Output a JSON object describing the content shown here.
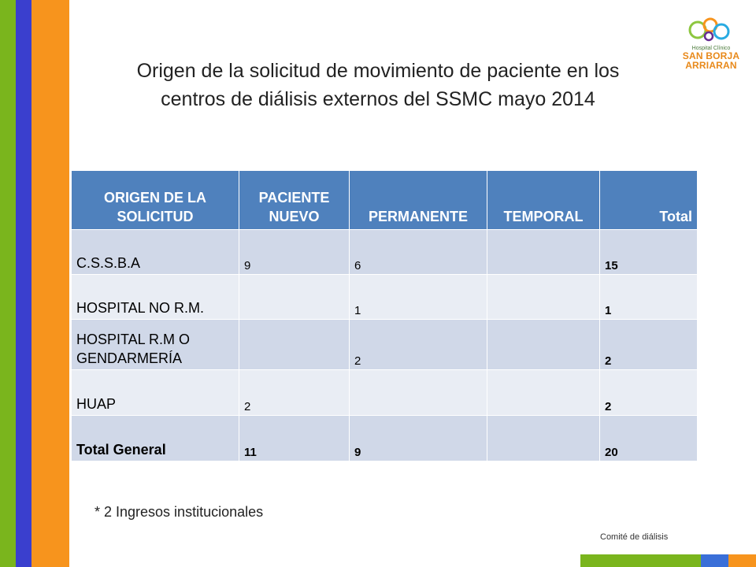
{
  "colors": {
    "stripe_green": "#7ab51d",
    "stripe_blue": "#3a3fce",
    "stripe_orange": "#f7941d",
    "header_bg": "#4f81bd",
    "row_dark": "#d0d8e8",
    "row_light": "#e9edf4"
  },
  "title": {
    "line1": "Origen de la solicitud de movimiento de paciente en los",
    "line2": "centros de diálisis externos del SSMC mayo 2014"
  },
  "logo": {
    "icon": "hospital-logo-icon",
    "line1": "Hospital Clínico",
    "line2": "SAN BORJA",
    "line3": "ARRIARAN"
  },
  "table": {
    "headers": [
      "ORIGEN DE LA SOLICITUD",
      "PACIENTE NUEVO",
      "PERMANENTE",
      "TEMPORAL",
      "Total"
    ],
    "rows": [
      {
        "origen": "C.S.S.B.A",
        "nuevo": "9",
        "permanente": "6",
        "temporal": "",
        "total": "15"
      },
      {
        "origen": "HOSPITAL NO R.M.",
        "nuevo": "",
        "permanente": "1",
        "temporal": "",
        "total": "1"
      },
      {
        "origen": "HOSPITAL R.M O GENDARMERÍA",
        "nuevo": "",
        "permanente": "2",
        "temporal": "",
        "total": "2"
      },
      {
        "origen": "HUAP",
        "nuevo": "2",
        "permanente": "",
        "temporal": "",
        "total": "2"
      },
      {
        "origen": "Total General",
        "nuevo": "11",
        "permanente": "9",
        "temporal": "",
        "total": "20"
      }
    ]
  },
  "footnote": "* 2 Ingresos institucionales",
  "footer": "Comité de diálisis"
}
